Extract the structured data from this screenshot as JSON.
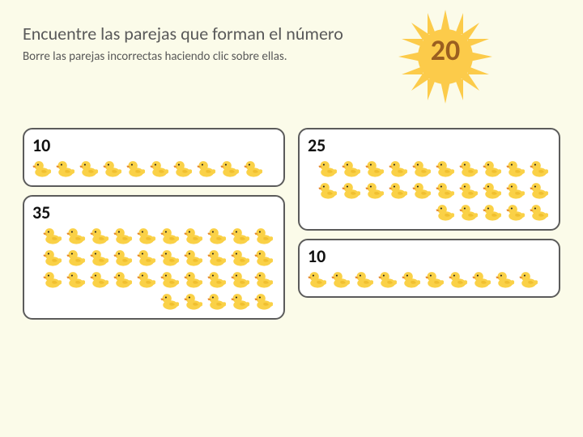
{
  "colors": {
    "background": "#fbfbe9",
    "text": "#595959",
    "target_text": "#9b5f20",
    "sun_fill": "#fccb4a",
    "card_bg": "#ffffff",
    "card_border": "#5b5b5b",
    "duck_body": "#fad147",
    "duck_beak": "#e68a2e",
    "duck_eye": "#222222"
  },
  "header": {
    "title": "Encuentre las parejas que forman el número",
    "subtitle": "Borre las parejas incorrectas haciendo clic sobre ellas."
  },
  "target_number": "20",
  "cards": {
    "left": [
      {
        "label": "10",
        "ducks": 10,
        "align": "left"
      },
      {
        "label": "35",
        "ducks": 35,
        "align": "right"
      }
    ],
    "right": [
      {
        "label": "25",
        "ducks": 25,
        "align": "right"
      },
      {
        "label": "10",
        "ducks": 10,
        "align": "left"
      }
    ]
  }
}
